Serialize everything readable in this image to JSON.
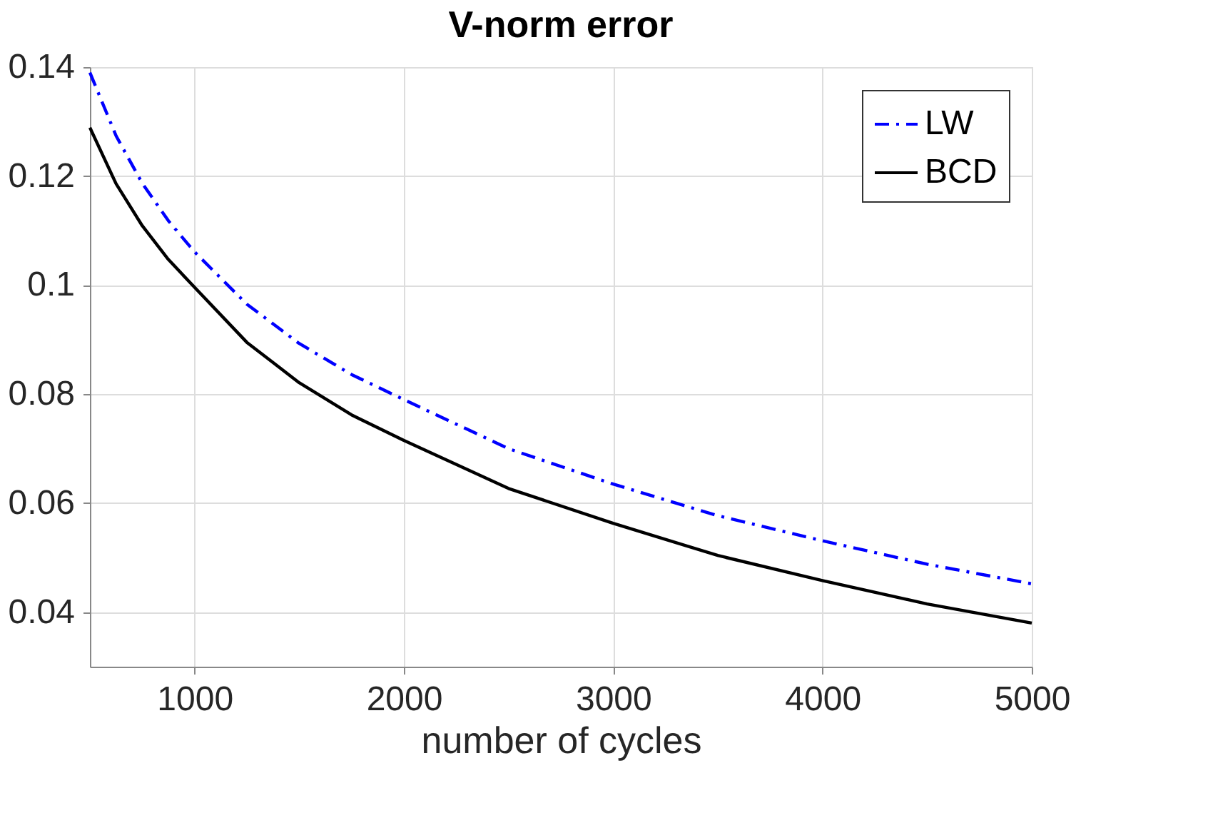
{
  "chart_data": {
    "type": "line",
    "title": "V-norm error",
    "xlabel": "number of cycles",
    "x": [
      500,
      625,
      750,
      875,
      1000,
      1250,
      1500,
      1750,
      2000,
      2500,
      3000,
      3500,
      4000,
      4500,
      5000
    ],
    "series": [
      {
        "name": "LW",
        "color": "#0000ff",
        "line_style": "dashdot",
        "values": [
          0.139,
          0.1274,
          0.1187,
          0.1118,
          0.1061,
          0.0965,
          0.0893,
          0.0836,
          0.079,
          0.07,
          0.0635,
          0.0577,
          0.0531,
          0.0488,
          0.0452
        ]
      },
      {
        "name": "BCD",
        "color": "#000000",
        "line_style": "solid",
        "values": [
          0.1289,
          0.1186,
          0.1109,
          0.1047,
          0.0996,
          0.0895,
          0.0821,
          0.0762,
          0.0715,
          0.0627,
          0.0563,
          0.0504,
          0.0458,
          0.0415,
          0.038
        ]
      }
    ],
    "xlim": [
      500,
      5000
    ],
    "xticks": [
      1000,
      2000,
      3000,
      4000,
      5000
    ],
    "ylim": [
      0.03,
      0.14
    ],
    "yticks": [
      0.04,
      0.06,
      0.08,
      0.1,
      0.12,
      0.14
    ],
    "grid": true,
    "legend": "top right"
  }
}
